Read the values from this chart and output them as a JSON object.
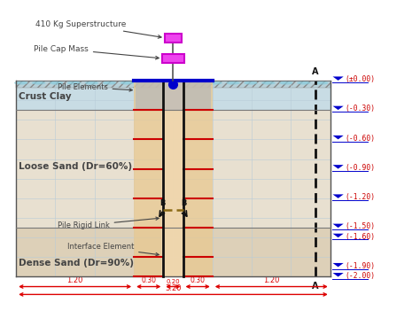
{
  "bg_color": "#ffffff",
  "crust_clay_color": "#c8dce4",
  "loose_sand_color": "#e8e0d0",
  "dense_sand_color": "#ddd0b8",
  "hatch_bg_color": "#c0d8e0",
  "hatch_top_color": "#aacccc",
  "grid_color": "#b8ccd8",
  "pile_outer_color": "#d4c8b0",
  "pile_inner_color": "#ece4d0",
  "pile_line_color": "#111111",
  "blue_cap_color": "#0000cc",
  "magenta_color": "#cc00cc",
  "magenta_face": "#ee44ee",
  "ann_color": "#444444",
  "dim_color": "#dd0000",
  "depth_label_color": "#cc0000",
  "depth_tri_color": "#0000cc",
  "aa_line_color": "#111111",
  "red_hline_color": "#cc0000",
  "depth_labels": [
    "(±0.00)",
    "(-0.30)",
    "(-0.60)",
    "(-0.90)",
    "(-1.20)",
    "(-1.50)",
    "(-1.60)",
    "(-1.90)",
    "(-2.00)"
  ],
  "depth_values": [
    0.0,
    -0.3,
    -0.6,
    -0.9,
    -1.2,
    -1.5,
    -1.6,
    -1.9,
    -2.0
  ],
  "superstructure_label": "410 Kg Superstructure",
  "pilecap_label": "Pile Cap Mass",
  "pile_elements_label": "Pile Elements",
  "crust_clay_label": "Crust Clay",
  "loose_sand_label": "Loose Sand (Dr=60%)",
  "pile_rigid_link_label": "Pile Rigid Link",
  "interface_element_label": "Interface Element",
  "dense_sand_label": "Dense Sand (Dr=90%)"
}
